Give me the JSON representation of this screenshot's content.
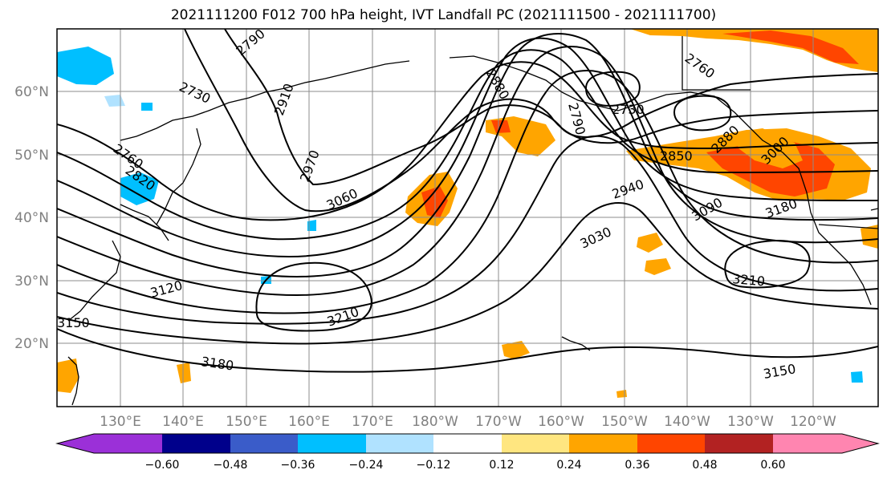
{
  "title": "2021111200 F012 700 hPa height, IVT Landfall PC (2021111500 - 2021111700)",
  "map": {
    "lat_labels": [
      "60°N",
      "50°N",
      "40°N",
      "30°N",
      "20°N"
    ],
    "lon_labels": [
      "130°E",
      "140°E",
      "150°E",
      "160°E",
      "170°E",
      "180°W",
      "170°W",
      "160°W",
      "150°W",
      "140°W",
      "130°W",
      "120°W"
    ],
    "contour_labels": [
      "2790",
      "2730",
      "2910",
      "2760",
      "2820",
      "2970",
      "3060",
      "2880",
      "2790",
      "2730",
      "2760",
      "2850",
      "2880",
      "3000",
      "2940",
      "3090",
      "3180",
      "3030",
      "3120",
      "3210",
      "3210",
      "3150",
      "3180",
      "3150"
    ]
  },
  "colorbar": {
    "ticks": [
      "−0.60",
      "−0.48",
      "−0.36",
      "−0.24",
      "−0.12",
      "0.12",
      "0.24",
      "0.36",
      "0.48",
      "0.60"
    ],
    "colors": {
      "under": "#9b30d8",
      "b1": "#00008b",
      "b2": "#3a5cc9",
      "b3": "#00bfff",
      "b4": "#b0e2ff",
      "b5": "#ffffff",
      "b6": "#ffe680",
      "b7": "#ffa500",
      "b8": "#ff4500",
      "b9": "#b22222",
      "over": "#ff85b0"
    }
  }
}
